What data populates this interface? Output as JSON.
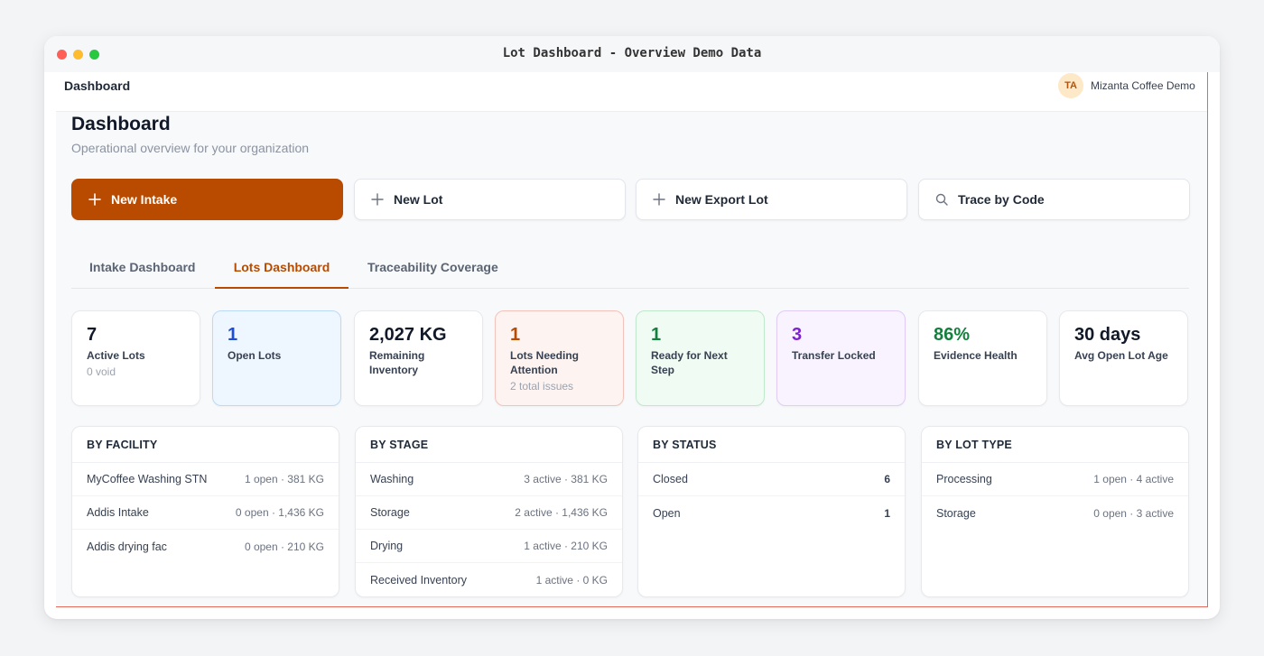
{
  "window": {
    "title": "Lot Dashboard - Overview Demo Data"
  },
  "topbar": {
    "brand": "Dashboard",
    "avatar_initials": "TA",
    "org_name": "Mizanta Coffee Demo"
  },
  "page": {
    "title": "Dashboard",
    "subtitle": "Operational overview for your organization"
  },
  "actions": [
    {
      "label": "New Intake",
      "icon": "plus-icon"
    },
    {
      "label": "New Lot",
      "icon": "plus-icon"
    },
    {
      "label": "New Export Lot",
      "icon": "plus-icon"
    },
    {
      "label": "Trace by Code",
      "icon": "search-icon"
    }
  ],
  "tabs": [
    {
      "label": "Intake Dashboard",
      "active": false
    },
    {
      "label": "Lots Dashboard",
      "active": true
    },
    {
      "label": "Traceability Coverage",
      "active": false
    }
  ],
  "kpis": [
    {
      "value": "7",
      "label": "Active Lots",
      "sub": "0 void"
    },
    {
      "value": "1",
      "label": "Open Lots",
      "sub": ""
    },
    {
      "value": "2,027 KG",
      "label": "Remaining Inventory",
      "sub": ""
    },
    {
      "value": "1",
      "label": "Lots Needing Attention",
      "sub": "2 total issues"
    },
    {
      "value": "1",
      "label": "Ready for Next Step",
      "sub": ""
    },
    {
      "value": "3",
      "label": "Transfer Locked",
      "sub": ""
    },
    {
      "value": "86%",
      "label": "Evidence Health",
      "sub": ""
    },
    {
      "value": "30 days",
      "label": "Avg Open Lot Age",
      "sub": ""
    }
  ],
  "panels": {
    "facility": {
      "title": "BY FACILITY",
      "rows": [
        {
          "name": "MyCoffee Washing STN",
          "value": "1 open · 381 KG"
        },
        {
          "name": "Addis Intake",
          "value": "0 open · 1,436 KG"
        },
        {
          "name": "Addis drying fac",
          "value": "0 open · 210 KG"
        }
      ]
    },
    "stage": {
      "title": "BY STAGE",
      "rows": [
        {
          "name": "Washing",
          "value": "3 active · 381 KG"
        },
        {
          "name": "Storage",
          "value": "2 active · 1,436 KG"
        },
        {
          "name": "Drying",
          "value": "1 active · 210 KG"
        },
        {
          "name": "Received Inventory",
          "value": "1 active · 0 KG"
        }
      ]
    },
    "status": {
      "title": "BY STATUS",
      "rows": [
        {
          "name": "Closed",
          "value": "6"
        },
        {
          "name": "Open",
          "value": "1"
        }
      ]
    },
    "lot_type": {
      "title": "BY LOT TYPE",
      "rows": [
        {
          "name": "Processing",
          "value": "1 open · 4 active"
        },
        {
          "name": "Storage",
          "value": "0 open · 3 active"
        }
      ]
    }
  },
  "colors": {
    "accent": "#b84b00",
    "open_lots": "#1d4ed8",
    "ready": "#15803d",
    "transfer_locked": "#7e22ce",
    "evidence_health": "#15803d"
  }
}
